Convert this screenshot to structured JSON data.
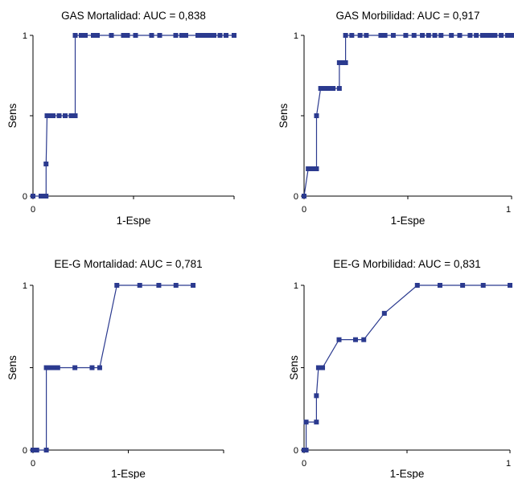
{
  "colors": {
    "series": "#2b3a8f",
    "axis": "#000000"
  },
  "chart_data": [
    {
      "type": "line",
      "title": "GAS Mortalidad: AUC = 0,838",
      "xlabel": "1-Espe",
      "ylabel": "Sens",
      "xlim": [
        0,
        1
      ],
      "ylim": [
        0,
        1
      ],
      "xticks": [
        "0"
      ],
      "yticks": [
        "0",
        "1"
      ],
      "grid": false,
      "series": [
        {
          "x": [
            0,
            0.04,
            0.055,
            0.065,
            0.065,
            0.07,
            0.085,
            0.1,
            0.13,
            0.16,
            0.19,
            0.21,
            0.21,
            0.24,
            0.26,
            0.3,
            0.32,
            0.39,
            0.45,
            0.47,
            0.51,
            0.59,
            0.63,
            0.71,
            0.74,
            0.76,
            0.82,
            0.84,
            0.86,
            0.88,
            0.9,
            0.93,
            0.96,
            1.0
          ],
          "y": [
            0,
            0,
            0,
            0,
            0.2,
            0.5,
            0.5,
            0.5,
            0.5,
            0.5,
            0.5,
            0.5,
            1,
            1,
            1,
            1,
            1,
            1,
            1,
            1,
            1,
            1,
            1,
            1,
            1,
            1,
            1,
            1,
            1,
            1,
            1,
            1,
            1,
            1
          ]
        }
      ]
    },
    {
      "type": "line",
      "title": "GAS Morbilidad: AUC = 0,917",
      "xlabel": "1-Espe",
      "ylabel": "Sens",
      "xlim": [
        0,
        1
      ],
      "ylim": [
        0,
        1
      ],
      "xticks": [
        "0",
        "1"
      ],
      "yticks": [
        "0",
        "1"
      ],
      "grid": false,
      "series": [
        {
          "x": [
            0,
            0.02,
            0.04,
            0.06,
            0.06,
            0.08,
            0.1,
            0.12,
            0.14,
            0.17,
            0.17,
            0.19,
            0.2,
            0.2,
            0.23,
            0.27,
            0.3,
            0.37,
            0.39,
            0.43,
            0.49,
            0.53,
            0.57,
            0.6,
            0.63,
            0.66,
            0.71,
            0.75,
            0.8,
            0.83,
            0.86,
            0.88,
            0.9,
            0.92,
            0.95,
            0.98,
            1.0
          ],
          "y": [
            0,
            0.17,
            0.17,
            0.17,
            0.5,
            0.67,
            0.67,
            0.67,
            0.67,
            0.67,
            0.83,
            0.83,
            0.83,
            1,
            1,
            1,
            1,
            1,
            1,
            1,
            1,
            1,
            1,
            1,
            1,
            1,
            1,
            1,
            1,
            1,
            1,
            1,
            1,
            1,
            1,
            1,
            1
          ]
        }
      ]
    },
    {
      "type": "line",
      "title": "EE-G Mortalidad: AUC = 0,781",
      "xlabel": "1-Espe",
      "ylabel": "Sens",
      "xlim": [
        0,
        1
      ],
      "ylim": [
        0,
        1
      ],
      "xticks": [
        "0"
      ],
      "yticks": [
        "0",
        "1"
      ],
      "grid": false,
      "series": [
        {
          "x": [
            0,
            0.02,
            0.07,
            0.07,
            0.09,
            0.11,
            0.13,
            0.22,
            0.31,
            0.35,
            0.44,
            0.56,
            0.66,
            0.75,
            0.84
          ],
          "y": [
            0,
            0,
            0,
            0.5,
            0.5,
            0.5,
            0.5,
            0.5,
            0.5,
            0.5,
            1,
            1,
            1,
            1,
            1
          ]
        }
      ]
    },
    {
      "type": "line",
      "title": "EE-G Morbilidad: AUC = 0,831",
      "xlabel": "1-Espe",
      "ylabel": "Sens",
      "xlim": [
        0,
        1
      ],
      "ylim": [
        0,
        1
      ],
      "xticks": [
        "0",
        "1"
      ],
      "yticks": [
        "0",
        "1"
      ],
      "grid": false,
      "series": [
        {
          "x": [
            0,
            0.01,
            0.01,
            0.06,
            0.06,
            0.07,
            0.09,
            0.17,
            0.25,
            0.29,
            0.39,
            0.55,
            0.66,
            0.77,
            0.87,
            1.0
          ],
          "y": [
            0,
            0,
            0.17,
            0.17,
            0.33,
            0.5,
            0.5,
            0.67,
            0.67,
            0.67,
            0.83,
            1,
            1,
            1,
            1,
            1
          ]
        }
      ]
    }
  ]
}
